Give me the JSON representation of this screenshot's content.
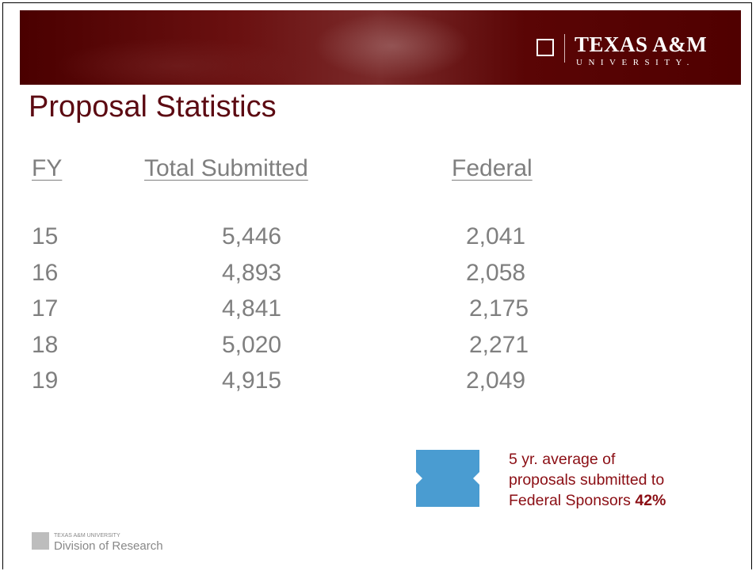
{
  "header": {
    "title": "Proposal Statistics",
    "logo_name": "TEXAS A&M",
    "logo_sub": "UNIVERSITY."
  },
  "table": {
    "columns": [
      "FY",
      "Total Submitted",
      "Federal"
    ],
    "rows": [
      [
        "15",
        "5,446",
        "2,041"
      ],
      [
        "16",
        "4,893",
        "2,058"
      ],
      [
        "17",
        "4,841",
        "2,175"
      ],
      [
        "18",
        "5,020",
        "2,271"
      ],
      [
        "19",
        "4,915",
        "2,049"
      ]
    ]
  },
  "callout": {
    "lines": [
      "5 yr. average of",
      "proposals submitted to",
      "Federal Sponsors"
    ],
    "percent": "42%"
  },
  "footer": {
    "university": "TEXAS A&M UNIVERSITY",
    "division": "Division of Research"
  }
}
